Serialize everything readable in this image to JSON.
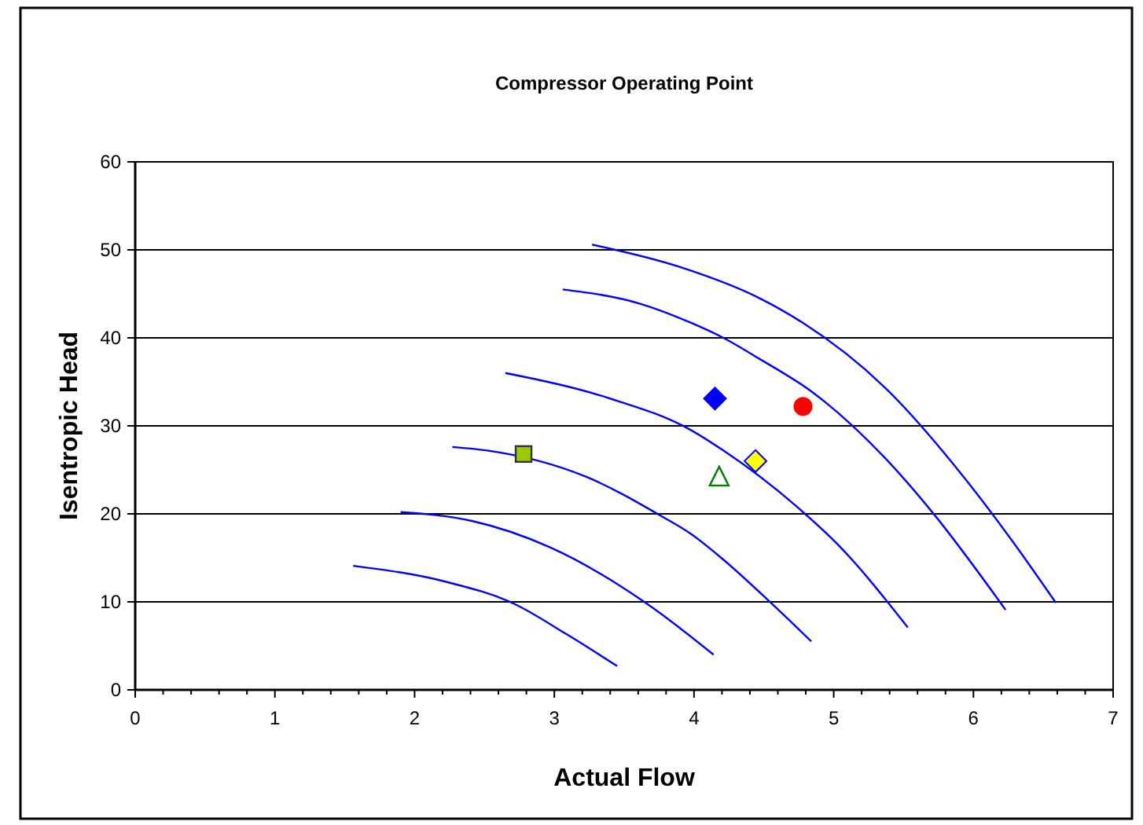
{
  "chart_data": {
    "type": "scatter",
    "title": "Compressor Operating Point",
    "xlabel": "Actual Flow",
    "ylabel": "Isentropic Head",
    "xlim": [
      0,
      7
    ],
    "ylim": [
      0,
      60
    ],
    "xticks": [
      0,
      {
        "value": 0.2,
        "label": null
      },
      {
        "value": 0.4,
        "label": null
      },
      {
        "value": 0.6,
        "label": null
      },
      {
        "value": 0.8,
        "label": null
      },
      1,
      {
        "value": 1.2,
        "label": null
      },
      {
        "value": 1.4,
        "label": null
      },
      {
        "value": 1.6,
        "label": null
      },
      {
        "value": 1.8,
        "label": null
      },
      2,
      {
        "value": 2.2,
        "label": null
      },
      {
        "value": 2.4,
        "label": null
      },
      {
        "value": 2.6,
        "label": null
      },
      {
        "value": 2.8,
        "label": null
      },
      3,
      {
        "value": 3.2,
        "label": null
      },
      {
        "value": 3.4,
        "label": null
      },
      {
        "value": 3.6,
        "label": null
      },
      {
        "value": 3.8,
        "label": null
      },
      4,
      {
        "value": 4.2,
        "label": null
      },
      {
        "value": 4.4,
        "label": null
      },
      {
        "value": 4.6,
        "label": null
      },
      {
        "value": 4.8,
        "label": null
      },
      5,
      {
        "value": 5.2,
        "label": null
      },
      {
        "value": 5.4,
        "label": null
      },
      {
        "value": 5.6,
        "label": null
      },
      {
        "value": 5.8,
        "label": null
      },
      6,
      {
        "value": 6.2,
        "label": null
      },
      {
        "value": 6.4,
        "label": null
      },
      {
        "value": 6.6,
        "label": null
      },
      {
        "value": 6.8,
        "label": null
      },
      7
    ],
    "yticks": [
      0,
      10,
      20,
      30,
      40,
      50,
      60
    ],
    "grid": "y",
    "series": [
      {
        "type": "line",
        "marker": "none",
        "color": "#0000ff",
        "x": [
          1.56,
          2.22,
          2.71,
          3.08,
          3.45
        ],
        "values": [
          14.1,
          12.3,
          9.8,
          6.4,
          2.7
        ]
      },
      {
        "type": "line",
        "marker": "none",
        "color": "#0000ff",
        "x": [
          1.9,
          2.41,
          2.97,
          3.68,
          4.14
        ],
        "values": [
          20.2,
          19.2,
          16.2,
          9.6,
          4.0
        ]
      },
      {
        "type": "line",
        "marker": "none",
        "color": "#0000ff",
        "x": [
          2.27,
          2.52,
          3.23,
          3.76,
          3.98,
          4.21,
          4.55,
          4.84
        ],
        "values": [
          27.6,
          27.2,
          24.2,
          19.8,
          17.7,
          14.8,
          9.9,
          5.5
        ]
      },
      {
        "type": "line",
        "marker": "none",
        "color": "#0000ff",
        "x": [
          2.65,
          3.38,
          3.98,
          4.21,
          4.73,
          5.03,
          5.53
        ],
        "values": [
          36.0,
          33.2,
          29.5,
          27.2,
          20.9,
          16.5,
          7.1
        ]
      },
      {
        "type": "line",
        "marker": "none",
        "color": "#0000ff",
        "x": [
          3.06,
          3.61,
          3.98,
          4.21,
          4.47,
          4.85,
          5.37,
          5.71,
          6.23
        ],
        "values": [
          45.5,
          43.9,
          41.7,
          40.0,
          37.6,
          33.8,
          26.3,
          20.1,
          9.1
        ]
      },
      {
        "type": "line",
        "marker": "none",
        "color": "#0000ff",
        "x": [
          3.27,
          3.91,
          4.47,
          4.77,
          5.37,
          5.93,
          6.27,
          6.59
        ],
        "values": [
          50.6,
          48.0,
          44.5,
          41.8,
          34.3,
          24.2,
          17.1,
          9.9
        ]
      },
      {
        "marker": "diamond",
        "color": "#0000ff",
        "x": [
          4.15
        ],
        "values": [
          33.1
        ]
      },
      {
        "marker": "circle",
        "color": "#ff0000",
        "x": [
          4.78
        ],
        "values": [
          32.2
        ]
      },
      {
        "marker": "diamond",
        "color": "#ffff00",
        "x": [
          4.44
        ],
        "values": [
          26.0
        ]
      },
      {
        "marker": "triangle",
        "color": "#008000",
        "x": [
          4.18
        ],
        "values": [
          24.3
        ]
      },
      {
        "marker": "square",
        "color": "#99cc00",
        "x": [
          2.78
        ],
        "values": [
          26.8
        ]
      }
    ]
  }
}
